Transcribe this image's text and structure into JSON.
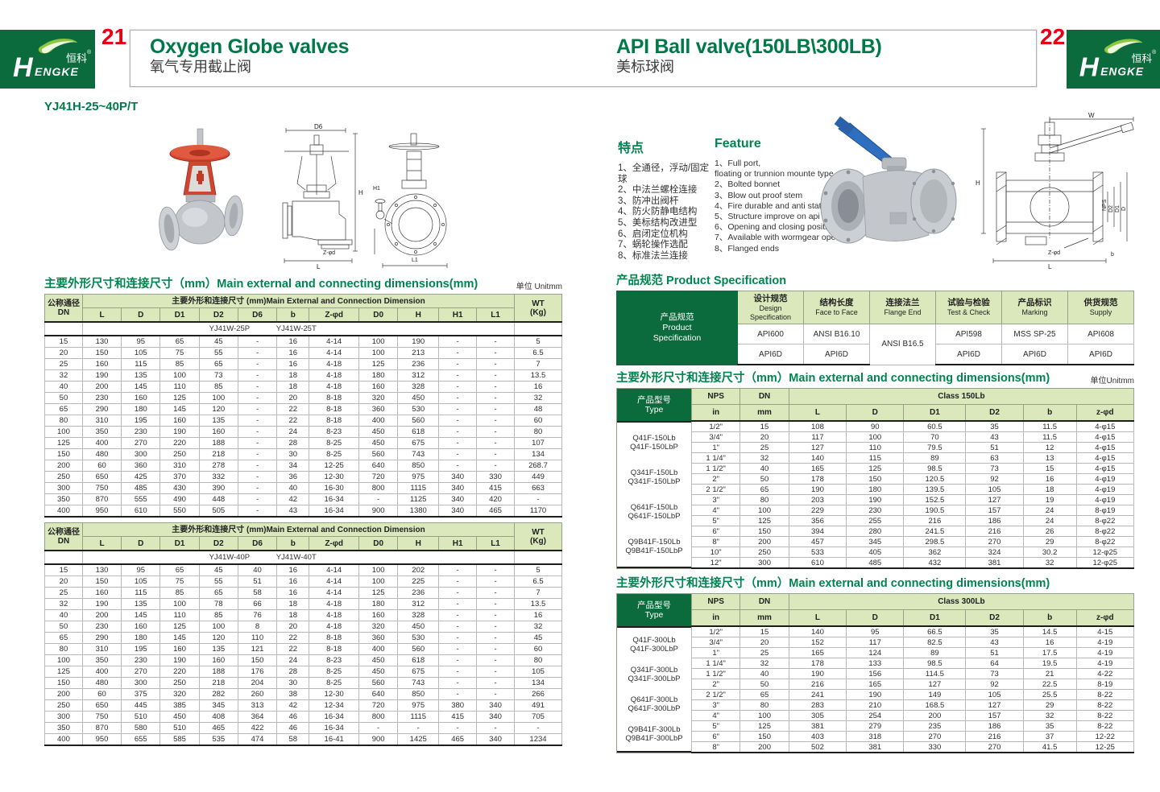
{
  "logo": {
    "zh": "恒科",
    "reg": "®",
    "en_h": "H",
    "en_rest": "ENGKE"
  },
  "left": {
    "page_num": "21",
    "title_en": "Oxygen Globe valves",
    "title_zh": "氧气专用截止阀",
    "model": "YJ41H-25~40P/T",
    "dim_title_zh": "主要外形尺寸和连接尺寸（mm）",
    "dim_title_en": "Main external and connecting dimensions(mm)",
    "unit": "单位 Unitmm",
    "dn_header": "公称通径\nDN",
    "wt_header": "WT\n(Kg)",
    "group_header": "主要外形和连接尺寸 (mm)Main External and Connection Dimension",
    "cols": [
      "L",
      "D",
      "D1",
      "D2",
      "D6",
      "b",
      "Z-φd",
      "D0",
      "H",
      "H1",
      "L1"
    ],
    "table1": {
      "sub_left": "YJ41W-25P",
      "sub_right": "YJ41W-25T",
      "rows": [
        [
          "15",
          "130",
          "95",
          "65",
          "45",
          "-",
          "16",
          "4-14",
          "100",
          "190",
          "-",
          "-",
          "5"
        ],
        [
          "20",
          "150",
          "105",
          "75",
          "55",
          "-",
          "16",
          "4-14",
          "100",
          "213",
          "-",
          "-",
          "6.5"
        ],
        [
          "25",
          "160",
          "115",
          "85",
          "65",
          "-",
          "16",
          "4-18",
          "125",
          "236",
          "-",
          "-",
          "7"
        ],
        [
          "32",
          "190",
          "135",
          "100",
          "73",
          "-",
          "18",
          "4-18",
          "180",
          "312",
          "-",
          "-",
          "13.5"
        ],
        [
          "40",
          "200",
          "145",
          "110",
          "85",
          "-",
          "18",
          "4-18",
          "160",
          "328",
          "-",
          "-",
          "16"
        ],
        [
          "50",
          "230",
          "160",
          "125",
          "100",
          "-",
          "20",
          "8-18",
          "320",
          "450",
          "-",
          "-",
          "32"
        ],
        [
          "65",
          "290",
          "180",
          "145",
          "120",
          "-",
          "22",
          "8-18",
          "360",
          "530",
          "-",
          "-",
          "48"
        ],
        [
          "80",
          "310",
          "195",
          "160",
          "135",
          "-",
          "22",
          "8-18",
          "400",
          "560",
          "-",
          "-",
          "60"
        ],
        [
          "100",
          "350",
          "230",
          "190",
          "160",
          "-",
          "24",
          "8-23",
          "450",
          "618",
          "-",
          "-",
          "80"
        ],
        [
          "125",
          "400",
          "270",
          "220",
          "188",
          "-",
          "28",
          "8-25",
          "450",
          "675",
          "-",
          "-",
          "107"
        ],
        [
          "150",
          "480",
          "300",
          "250",
          "218",
          "-",
          "30",
          "8-25",
          "560",
          "743",
          "-",
          "-",
          "134"
        ],
        [
          "200",
          "60",
          "360",
          "310",
          "278",
          "-",
          "34",
          "12-25",
          "640",
          "850",
          "-",
          "-",
          "268.7"
        ],
        [
          "250",
          "650",
          "425",
          "370",
          "332",
          "-",
          "36",
          "12-30",
          "720",
          "975",
          "340",
          "330",
          "449"
        ],
        [
          "300",
          "750",
          "485",
          "430",
          "390",
          "-",
          "40",
          "16-30",
          "800",
          "1115",
          "340",
          "415",
          "663"
        ],
        [
          "350",
          "870",
          "555",
          "490",
          "448",
          "-",
          "42",
          "16-34",
          "-",
          "1125",
          "340",
          "420",
          "-"
        ],
        [
          "400",
          "950",
          "610",
          "550",
          "505",
          "-",
          "43",
          "16-34",
          "900",
          "1380",
          "340",
          "465",
          "1170"
        ]
      ]
    },
    "table2": {
      "sub_left": "YJ41W-40P",
      "sub_right": "YJ41W-40T",
      "rows": [
        [
          "15",
          "130",
          "95",
          "65",
          "45",
          "40",
          "16",
          "4-14",
          "100",
          "202",
          "-",
          "-",
          "5"
        ],
        [
          "20",
          "150",
          "105",
          "75",
          "55",
          "51",
          "16",
          "4-14",
          "100",
          "225",
          "-",
          "-",
          "6.5"
        ],
        [
          "25",
          "160",
          "115",
          "85",
          "65",
          "58",
          "16",
          "4-14",
          "125",
          "236",
          "-",
          "-",
          "7"
        ],
        [
          "32",
          "190",
          "135",
          "100",
          "78",
          "66",
          "18",
          "4-18",
          "180",
          "312",
          "-",
          "-",
          "13.5"
        ],
        [
          "40",
          "200",
          "145",
          "110",
          "85",
          "76",
          "18",
          "4-18",
          "160",
          "328",
          "-",
          "-",
          "16"
        ],
        [
          "50",
          "230",
          "160",
          "125",
          "100",
          "8",
          "20",
          "4-18",
          "320",
          "450",
          "-",
          "-",
          "32"
        ],
        [
          "65",
          "290",
          "180",
          "145",
          "120",
          "110",
          "22",
          "8-18",
          "360",
          "530",
          "-",
          "-",
          "45"
        ],
        [
          "80",
          "310",
          "195",
          "160",
          "135",
          "121",
          "22",
          "8-18",
          "400",
          "560",
          "-",
          "-",
          "60"
        ],
        [
          "100",
          "350",
          "230",
          "190",
          "160",
          "150",
          "24",
          "8-23",
          "450",
          "618",
          "-",
          "-",
          "80"
        ],
        [
          "125",
          "400",
          "270",
          "220",
          "188",
          "176",
          "28",
          "8-25",
          "450",
          "675",
          "-",
          "-",
          "105"
        ],
        [
          "150",
          "480",
          "300",
          "250",
          "218",
          "204",
          "30",
          "8-25",
          "560",
          "743",
          "-",
          "-",
          "134"
        ],
        [
          "200",
          "60",
          "375",
          "320",
          "282",
          "260",
          "38",
          "12-30",
          "640",
          "850",
          "-",
          "-",
          "266"
        ],
        [
          "250",
          "650",
          "445",
          "385",
          "345",
          "313",
          "42",
          "12-34",
          "720",
          "975",
          "380",
          "340",
          "491"
        ],
        [
          "300",
          "750",
          "510",
          "450",
          "408",
          "364",
          "46",
          "16-34",
          "800",
          "1115",
          "415",
          "340",
          "705"
        ],
        [
          "350",
          "870",
          "580",
          "510",
          "465",
          "422",
          "46",
          "16-34",
          "-",
          "-",
          "-",
          "-",
          "-"
        ],
        [
          "400",
          "950",
          "655",
          "585",
          "535",
          "474",
          "58",
          "16-41",
          "900",
          "1425",
          "465",
          "340",
          "1234"
        ]
      ]
    },
    "drawing_labels": {
      "d6": "D6",
      "h": "H",
      "l": "L",
      "zd": "Z-φd",
      "h1": "H1",
      "l1": "L1"
    }
  },
  "right": {
    "page_num": "22",
    "title_en": "API Ball valve(150LB\\300LB)",
    "title_zh": "美标球阀",
    "features_zh": {
      "title": "特点",
      "items": [
        "1、全通径，浮动/固定球",
        "2、中法兰螺栓连接",
        "3、防冲出阀杆",
        "4、防火防静电结构",
        "5、美标结构改进型",
        "6、启闭定位机构",
        "7、蜗轮操作选配",
        "8、标准法兰连接"
      ]
    },
    "features_en": {
      "title": "Feature",
      "items": [
        "1、Full port,\n      floating or trunnion mounte type",
        "2、Bolted bonnet",
        "3、Blow out proof stem",
        "4、Fire durable and anti static safety",
        "5、Structure improve on api",
        "6、Opening and closing position",
        "7、Available with wormgear operator",
        "8、Flanged ends"
      ]
    },
    "spec": {
      "title_zh": "产品规范",
      "title_en": "Product Specification",
      "corner": "产品规范\nProduct\nSpecification",
      "headers": [
        {
          "zh": "设计规范",
          "en": "Design Specification"
        },
        {
          "zh": "结构长度",
          "en": "Face to Face"
        },
        {
          "zh": "连接法兰",
          "en": "Flange End"
        },
        {
          "zh": "试验与检验",
          "en": "Test & Check"
        },
        {
          "zh": "产品标识",
          "en": "Marking"
        },
        {
          "zh": "供货规范",
          "en": "Supply"
        }
      ],
      "row1": [
        "API600",
        "ANSI B16.10",
        "API598",
        "MSS SP-25",
        "API608"
      ],
      "flange_both": "ANSI B16.5",
      "row2": [
        "API6D",
        "API6D",
        "API6D",
        "API6D",
        "API6D"
      ]
    },
    "dim_title_zh": "主要外形尺寸和连接尺寸（mm）",
    "dim_title_en": "Main external and connecting dimensions(mm)",
    "unit": "单位Unitmm",
    "type_header": "产品型号\nType",
    "nps": "NPS",
    "in_label": "in",
    "dn": "DN",
    "mm": "mm",
    "cols": [
      "L",
      "D",
      "D1",
      "D2",
      "b",
      "z-φd"
    ],
    "t150": {
      "class_label": "Class 150Lb",
      "types": [
        [
          "Q41F-150Lb",
          "Q41F-150LbP"
        ],
        [
          "Q341F-150Lb",
          "Q341F-150LbP"
        ],
        [
          "Q641F-150Lb",
          "Q641F-150LbP"
        ],
        [
          "Q9B41F-150Lb",
          "Q9B41F-150LbP"
        ]
      ],
      "rows": [
        [
          "1/2\"",
          "15",
          "108",
          "90",
          "60.5",
          "35",
          "11.5",
          "4-φ15"
        ],
        [
          "3/4\"",
          "20",
          "117",
          "100",
          "70",
          "43",
          "11.5",
          "4-φ15"
        ],
        [
          "1\"",
          "25",
          "127",
          "110",
          "79.5",
          "51",
          "12",
          "4-φ15"
        ],
        [
          "1 1/4\"",
          "32",
          "140",
          "115",
          "89",
          "63",
          "13",
          "4-φ15"
        ],
        [
          "1 1/2\"",
          "40",
          "165",
          "125",
          "98.5",
          "73",
          "15",
          "4-φ15"
        ],
        [
          "2\"",
          "50",
          "178",
          "150",
          "120.5",
          "92",
          "16",
          "4-φ19"
        ],
        [
          "2 1/2\"",
          "65",
          "190",
          "180",
          "139.5",
          "105",
          "18",
          "4-φ19"
        ],
        [
          "3\"",
          "80",
          "203",
          "190",
          "152.5",
          "127",
          "19",
          "4-φ19"
        ],
        [
          "4\"",
          "100",
          "229",
          "230",
          "190.5",
          "157",
          "24",
          "8-φ19"
        ],
        [
          "5\"",
          "125",
          "356",
          "255",
          "216",
          "186",
          "24",
          "8-φ22"
        ],
        [
          "6\"",
          "150",
          "394",
          "280",
          "241.5",
          "216",
          "26",
          "8-φ22"
        ],
        [
          "8\"",
          "200",
          "457",
          "345",
          "298.5",
          "270",
          "29",
          "8-φ22"
        ],
        [
          "10\"",
          "250",
          "533",
          "405",
          "362",
          "324",
          "30.2",
          "12-φ25"
        ],
        [
          "12\"",
          "300",
          "610",
          "485",
          "432",
          "381",
          "32",
          "12-φ25"
        ]
      ]
    },
    "t300": {
      "class_label": "Class 300Lb",
      "types": [
        [
          "Q41F-300Lb",
          "Q41F-300LbP"
        ],
        [
          "Q341F-300Lb",
          "Q341F-300LbP"
        ],
        [
          "Q641F-300Lb",
          "Q641F-300LbP"
        ],
        [
          "Q9B41F-300Lb",
          "Q9B41F-300LbP"
        ]
      ],
      "rows": [
        [
          "1/2\"",
          "15",
          "140",
          "95",
          "66.5",
          "35",
          "14.5",
          "4-15"
        ],
        [
          "3/4\"",
          "20",
          "152",
          "117",
          "82.5",
          "43",
          "16",
          "4-19"
        ],
        [
          "1\"",
          "25",
          "165",
          "124",
          "89",
          "51",
          "17.5",
          "4-19"
        ],
        [
          "1 1/4\"",
          "32",
          "178",
          "133",
          "98.5",
          "64",
          "19.5",
          "4-19"
        ],
        [
          "1 1/2\"",
          "40",
          "190",
          "156",
          "114.5",
          "73",
          "21",
          "4-22"
        ],
        [
          "2\"",
          "50",
          "216",
          "165",
          "127",
          "92",
          "22.5",
          "8-19"
        ],
        [
          "2 1/2\"",
          "65",
          "241",
          "190",
          "149",
          "105",
          "25.5",
          "8-22"
        ],
        [
          "3\"",
          "80",
          "283",
          "210",
          "168.5",
          "127",
          "29",
          "8-22"
        ],
        [
          "4\"",
          "100",
          "305",
          "254",
          "200",
          "157",
          "32",
          "8-22"
        ],
        [
          "5\"",
          "125",
          "381",
          "279",
          "235",
          "186",
          "35",
          "8-22"
        ],
        [
          "6\"",
          "150",
          "403",
          "318",
          "270",
          "216",
          "37",
          "12-22"
        ],
        [
          "8\"",
          "200",
          "502",
          "381",
          "330",
          "270",
          "41.5",
          "12-25"
        ]
      ]
    },
    "drawing_labels": {
      "w": "W",
      "h": "H",
      "l": "L",
      "b": "b",
      "zd": "Z-φd",
      "nps": "NPS",
      "d2": "D2",
      "d1": "D1",
      "d": "D"
    }
  }
}
